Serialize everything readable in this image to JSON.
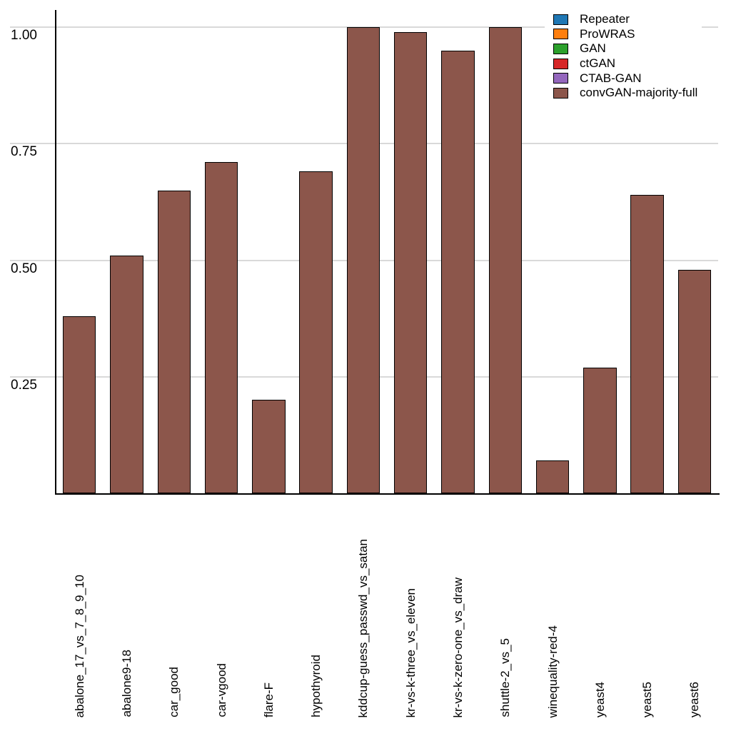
{
  "chart_data": {
    "type": "bar",
    "title": "",
    "xlabel": "",
    "ylabel": "",
    "categories": [
      "abalone_17_vs_7_8_9_10",
      "abalone9-18",
      "car_good",
      "car-vgood",
      "flare-F",
      "hypothyroid",
      "kddcup-guess_passwd_vs_satan",
      "kr-vs-k-three_vs_eleven",
      "kr-vs-k-zero-one_vs_draw",
      "shuttle-2_vs_5",
      "winequality-red-4",
      "yeast4",
      "yeast5",
      "yeast6"
    ],
    "series": [
      {
        "name": "convGAN-majority-full",
        "color": "#8c564b",
        "values": [
          0.38,
          0.51,
          0.65,
          0.71,
          0.2,
          0.69,
          1.0,
          0.99,
          0.95,
          1.0,
          0.07,
          0.27,
          0.64,
          0.48
        ]
      }
    ],
    "legend": [
      {
        "label": "Repeater",
        "color": "#1f77b4"
      },
      {
        "label": "ProWRAS",
        "color": "#ff7f0e"
      },
      {
        "label": "GAN",
        "color": "#2ca02c"
      },
      {
        "label": "ctGAN",
        "color": "#d62728"
      },
      {
        "label": "CTAB-GAN",
        "color": "#9467bd"
      },
      {
        "label": "convGAN-majority-full",
        "color": "#8c564b"
      }
    ],
    "legend_position": "top-right",
    "ylim": [
      0,
      1.02
    ],
    "yticks": [
      {
        "value": 0.25,
        "label": "0.25"
      },
      {
        "value": 0.5,
        "label": "0.50"
      },
      {
        "value": 0.75,
        "label": "0.75"
      },
      {
        "value": 1.0,
        "label": "1.00"
      }
    ],
    "grid": "horizontal",
    "grid_color": "#d9d9d9",
    "axis_color": "#000000",
    "bar_edge_color": "#000000",
    "background_color": "#ffffff"
  }
}
